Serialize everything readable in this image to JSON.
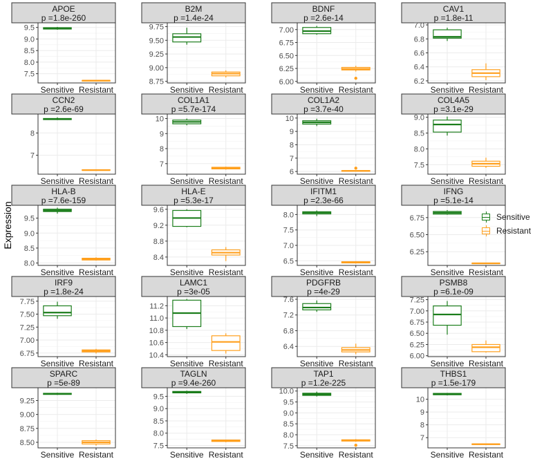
{
  "ylabel": "Expression",
  "legend": {
    "items": [
      {
        "label": "Sensitive",
        "color": "#1b7d1b"
      },
      {
        "label": "Resistant",
        "color": "#ff9f1c"
      }
    ],
    "placement": "right"
  },
  "colors": {
    "sensitive": "#1b7d1b",
    "resistant": "#ff9f1c",
    "strip": "#d9d9d9",
    "grid": "#ebebeb"
  },
  "chart_data": {
    "type": "boxplot",
    "categories": [
      "Sensitive",
      "Resistant"
    ],
    "panels": [
      {
        "gene": "APOE",
        "pvalue": "p =1.8e-260",
        "yticks": [
          "7.5",
          "8.0",
          "8.5",
          "9.0",
          "9.5"
        ],
        "ylim": [
          7.1,
          9.7
        ],
        "boxes": [
          {
            "min": 9.4,
            "q1": 9.43,
            "median": 9.46,
            "q3": 9.49,
            "max": 9.52,
            "outliers": []
          },
          {
            "min": 7.18,
            "q1": 7.19,
            "median": 7.2,
            "q3": 7.21,
            "max": 7.22,
            "outliers": []
          }
        ]
      },
      {
        "gene": "B2M",
        "pvalue": "p =1.4e-24",
        "yticks": [
          "8.75",
          "9.00",
          "9.25",
          "9.50",
          "9.75"
        ],
        "ylim": [
          8.72,
          9.82
        ],
        "boxes": [
          {
            "min": 9.42,
            "q1": 9.47,
            "median": 9.56,
            "q3": 9.62,
            "max": 9.73,
            "outliers": []
          },
          {
            "min": 8.82,
            "q1": 8.85,
            "median": 8.89,
            "q3": 8.92,
            "max": 8.95,
            "outliers": []
          }
        ]
      },
      {
        "gene": "BDNF",
        "pvalue": "p =2.6e-14",
        "yticks": [
          "6.00",
          "6.25",
          "6.50",
          "6.75",
          "7.00"
        ],
        "ylim": [
          5.97,
          7.13
        ],
        "boxes": [
          {
            "min": 6.9,
            "q1": 6.92,
            "median": 6.97,
            "q3": 7.04,
            "max": 7.07,
            "outliers": []
          },
          {
            "min": 6.19,
            "q1": 6.22,
            "median": 6.24,
            "q3": 6.27,
            "max": 6.3,
            "outliers": [
              6.06
            ]
          }
        ]
      },
      {
        "gene": "CAV1",
        "pvalue": "p =1.8e-11",
        "yticks": [
          "6.2",
          "6.4",
          "6.6",
          "6.8",
          "7.0"
        ],
        "ylim": [
          6.17,
          7.03
        ],
        "boxes": [
          {
            "min": 6.77,
            "q1": 6.81,
            "median": 6.83,
            "q3": 6.93,
            "max": 6.96,
            "outliers": []
          },
          {
            "min": 6.21,
            "q1": 6.26,
            "median": 6.31,
            "q3": 6.36,
            "max": 6.45,
            "outliers": []
          }
        ]
      },
      {
        "gene": "CCN2",
        "pvalue": "p =2.6e-69",
        "yticks": [
          "7",
          "8"
        ],
        "ylim": [
          6.15,
          8.85
        ],
        "boxes": [
          {
            "min": 8.58,
            "q1": 8.6,
            "median": 8.62,
            "q3": 8.65,
            "max": 8.7,
            "outliers": []
          },
          {
            "min": 6.3,
            "q1": 6.32,
            "median": 6.33,
            "q3": 6.35,
            "max": 6.37,
            "outliers": []
          }
        ]
      },
      {
        "gene": "COL1A1",
        "pvalue": "p =5.7e-174",
        "yticks": [
          "7",
          "8",
          "9",
          "10"
        ],
        "ylim": [
          6.3,
          10.3
        ],
        "boxes": [
          {
            "min": 9.55,
            "q1": 9.65,
            "median": 9.78,
            "q3": 9.9,
            "max": 10.0,
            "outliers": []
          },
          {
            "min": 6.6,
            "q1": 6.65,
            "median": 6.7,
            "q3": 6.76,
            "max": 6.8,
            "outliers": []
          }
        ]
      },
      {
        "gene": "COL1A2",
        "pvalue": "p =3.7e-40",
        "yticks": [
          "6",
          "7",
          "8",
          "9",
          "10"
        ],
        "ylim": [
          5.8,
          10.3
        ],
        "boxes": [
          {
            "min": 9.4,
            "q1": 9.55,
            "median": 9.68,
            "q3": 9.8,
            "max": 9.95,
            "outliers": []
          },
          {
            "min": 6.02,
            "q1": 6.04,
            "median": 6.05,
            "q3": 6.07,
            "max": 6.09,
            "outliers": [
              6.25
            ]
          }
        ]
      },
      {
        "gene": "COL4A5",
        "pvalue": "p =3.1e-29",
        "yticks": [
          "7.5",
          "8.0",
          "8.5",
          "9.0"
        ],
        "ylim": [
          7.2,
          9.1
        ],
        "boxes": [
          {
            "min": 8.42,
            "q1": 8.53,
            "median": 8.77,
            "q3": 8.91,
            "max": 9.02,
            "outliers": []
          },
          {
            "min": 7.4,
            "q1": 7.45,
            "median": 7.53,
            "q3": 7.61,
            "max": 7.72,
            "outliers": []
          }
        ]
      },
      {
        "gene": "HLA-B",
        "pvalue": "p =7.6e-159",
        "yticks": [
          "8.0",
          "8.5",
          "9.0",
          "9.5"
        ],
        "ylim": [
          7.92,
          9.93
        ],
        "boxes": [
          {
            "min": 9.65,
            "q1": 9.72,
            "median": 9.76,
            "q3": 9.8,
            "max": 9.85,
            "outliers": []
          },
          {
            "min": 8.08,
            "q1": 8.1,
            "median": 8.13,
            "q3": 8.16,
            "max": 8.19,
            "outliers": []
          }
        ]
      },
      {
        "gene": "HLA-E",
        "pvalue": "p =5.3e-17",
        "yticks": [
          "8.4",
          "8.8",
          "9.2",
          "9.6"
        ],
        "ylim": [
          8.19,
          9.7
        ],
        "boxes": [
          {
            "min": 9.15,
            "q1": 9.17,
            "median": 9.38,
            "q3": 9.57,
            "max": 9.6,
            "outliers": []
          },
          {
            "min": 8.3,
            "q1": 8.45,
            "median": 8.51,
            "q3": 8.58,
            "max": 8.65,
            "outliers": []
          }
        ]
      },
      {
        "gene": "IFITM1",
        "pvalue": "p =2.3e-66",
        "yticks": [
          "6.5",
          "7.0",
          "7.5",
          "8.0"
        ],
        "ylim": [
          6.35,
          8.3
        ],
        "boxes": [
          {
            "min": 7.95,
            "q1": 8.02,
            "median": 8.06,
            "q3": 8.09,
            "max": 8.13,
            "outliers": []
          },
          {
            "min": 6.41,
            "q1": 6.43,
            "median": 6.45,
            "q3": 6.47,
            "max": 6.49,
            "outliers": []
          }
        ]
      },
      {
        "gene": "IFNG",
        "pvalue": "p =5.1e-14",
        "yticks": [
          "6.25",
          "6.50",
          "6.75"
        ],
        "ylim": [
          6.05,
          6.93
        ],
        "boxes": [
          {
            "min": 6.79,
            "q1": 6.8,
            "median": 6.82,
            "q3": 6.84,
            "max": 6.86,
            "outliers": []
          },
          {
            "min": 6.07,
            "q1": 6.075,
            "median": 6.08,
            "q3": 6.085,
            "max": 6.09,
            "outliers": []
          }
        ]
      },
      {
        "gene": "IRF9",
        "pvalue": "p =1.8e-24",
        "yticks": [
          "6.75",
          "7.00",
          "7.25",
          "7.50",
          "7.75"
        ],
        "ylim": [
          6.68,
          7.84
        ],
        "boxes": [
          {
            "min": 7.41,
            "q1": 7.47,
            "median": 7.53,
            "q3": 7.66,
            "max": 7.74,
            "outliers": []
          },
          {
            "min": 6.74,
            "q1": 6.77,
            "median": 6.79,
            "q3": 6.81,
            "max": 6.83,
            "outliers": []
          }
        ]
      },
      {
        "gene": "LAMC1",
        "pvalue": "p =3e-05",
        "yticks": [
          "10.4",
          "10.6",
          "10.8",
          "11.0",
          "11.2"
        ],
        "ylim": [
          10.37,
          11.35
        ],
        "boxes": [
          {
            "min": 10.82,
            "q1": 10.86,
            "median": 11.08,
            "q3": 11.29,
            "max": 11.31,
            "outliers": []
          },
          {
            "min": 10.42,
            "q1": 10.47,
            "median": 10.61,
            "q3": 10.71,
            "max": 10.75,
            "outliers": []
          }
        ]
      },
      {
        "gene": "PDGFRB",
        "pvalue": "p =4e-29",
        "yticks": [
          "6.4",
          "6.8",
          "7.2",
          "7.6"
        ],
        "ylim": [
          6.14,
          7.67
        ],
        "boxes": [
          {
            "min": 7.28,
            "q1": 7.33,
            "median": 7.39,
            "q3": 7.49,
            "max": 7.57,
            "outliers": []
          },
          {
            "min": 6.2,
            "q1": 6.26,
            "median": 6.31,
            "q3": 6.37,
            "max": 6.47,
            "outliers": []
          }
        ]
      },
      {
        "gene": "PSMB8",
        "pvalue": "p =6.1e-09",
        "yticks": [
          "6.00",
          "6.25",
          "6.50",
          "6.75",
          "7.00",
          "7.25"
        ],
        "ylim": [
          5.98,
          7.32
        ],
        "boxes": [
          {
            "min": 6.47,
            "q1": 6.68,
            "median": 6.92,
            "q3": 7.11,
            "max": 7.22,
            "outliers": []
          },
          {
            "min": 6.07,
            "q1": 6.09,
            "median": 6.19,
            "q3": 6.25,
            "max": 6.34,
            "outliers": []
          }
        ]
      },
      {
        "gene": "SPARC",
        "pvalue": "p =5e-89",
        "yticks": [
          "8.50",
          "8.75",
          "9.00",
          "9.25"
        ],
        "ylim": [
          8.4,
          9.48
        ],
        "boxes": [
          {
            "min": 9.35,
            "q1": 9.36,
            "median": 9.37,
            "q3": 9.38,
            "max": 9.39,
            "outliers": []
          },
          {
            "min": 8.44,
            "q1": 8.47,
            "median": 8.5,
            "q3": 8.53,
            "max": 8.55,
            "outliers": []
          }
        ]
      },
      {
        "gene": "TAGLN",
        "pvalue": "p =9.4e-260",
        "yticks": [
          "7.5",
          "8.0",
          "8.5",
          "9.0",
          "9.5"
        ],
        "ylim": [
          7.4,
          9.85
        ],
        "boxes": [
          {
            "min": 9.6,
            "q1": 9.64,
            "median": 9.67,
            "q3": 9.7,
            "max": 9.73,
            "outliers": []
          },
          {
            "min": 7.63,
            "q1": 7.66,
            "median": 7.69,
            "q3": 7.72,
            "max": 7.74,
            "outliers": []
          }
        ]
      },
      {
        "gene": "TAP1",
        "pvalue": "p =1.2e-225",
        "yticks": [
          "7.5",
          "8.0",
          "8.5",
          "9.0",
          "9.5",
          "10.0"
        ],
        "ylim": [
          7.4,
          10.15
        ],
        "boxes": [
          {
            "min": 9.75,
            "q1": 9.8,
            "median": 9.85,
            "q3": 9.9,
            "max": 9.97,
            "outliers": []
          },
          {
            "min": 7.68,
            "q1": 7.71,
            "median": 7.74,
            "q3": 7.77,
            "max": 7.8,
            "outliers": [
              7.52
            ]
          }
        ]
      },
      {
        "gene": "THBS1",
        "pvalue": "p =1.5e-179",
        "yticks": [
          "7",
          "8",
          "9",
          "10"
        ],
        "ylim": [
          6.2,
          10.9
        ],
        "boxes": [
          {
            "min": 10.3,
            "q1": 10.35,
            "median": 10.4,
            "q3": 10.46,
            "max": 10.5,
            "outliers": []
          },
          {
            "min": 6.45,
            "q1": 6.47,
            "median": 6.49,
            "q3": 6.51,
            "max": 6.53,
            "outliers": []
          }
        ]
      }
    ]
  }
}
